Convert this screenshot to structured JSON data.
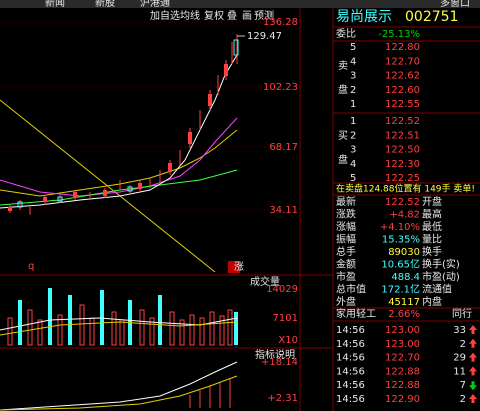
{
  "top_tabs": [
    "新闻",
    "新股",
    "沪港通",
    "多窗口"
  ],
  "toolbar": [
    "加自选",
    "均线",
    "复权",
    "叠",
    "画",
    "预测"
  ],
  "price_axis": [
    "136.28",
    "102.23",
    "68.17",
    "34.11"
  ],
  "high_label": "129.47",
  "chart_markers": {
    "left": "q",
    "right": "涨"
  },
  "volume": {
    "title": "成交量",
    "ticks": [
      "14029",
      "7101",
      "X10"
    ]
  },
  "indicator": {
    "title": "指标说明",
    "ticks": [
      "+18.14",
      "+2.31"
    ]
  },
  "quote": {
    "name": "易尚展示",
    "code": "002751",
    "ratio_label": "委比",
    "ratio": "-25.13%",
    "sell_side": [
      "卖",
      "盘"
    ],
    "sell": [
      {
        "level": "5",
        "price": "122.80"
      },
      {
        "level": "4",
        "price": "122.70"
      },
      {
        "level": "3",
        "price": "122.62"
      },
      {
        "level": "2",
        "price": "122.60"
      },
      {
        "level": "1",
        "price": "122.55"
      }
    ],
    "buy_side": [
      "买",
      "盘"
    ],
    "buy": [
      {
        "level": "1",
        "price": "122.52"
      },
      {
        "level": "2",
        "price": "122.51"
      },
      {
        "level": "3",
        "price": "122.50"
      },
      {
        "level": "4",
        "price": "122.30"
      },
      {
        "level": "5",
        "price": "122.25"
      }
    ],
    "alert": "在卖盘124.88位置有 149手 卖单!",
    "stats": [
      [
        "最新",
        "122.52",
        "开盘"
      ],
      [
        "涨跌",
        "+4.82",
        "最高"
      ],
      [
        "涨幅",
        "+4.10%",
        "最低"
      ],
      [
        "振幅",
        "15.35%",
        "量比"
      ],
      [
        "总手",
        "89030",
        "换手"
      ],
      [
        "金额",
        "10.65亿",
        "换手(实)"
      ],
      [
        "市盈",
        "488.4",
        "市盈(动)"
      ],
      [
        "总市值",
        "172.1亿",
        "流通值"
      ],
      [
        "外盘",
        "45117",
        "内盘"
      ]
    ],
    "sector": {
      "name": "家用轻工",
      "change": "2.66%",
      "more": "同行"
    },
    "ticks": [
      {
        "time": "14:56",
        "price": "123.00",
        "vol": "33",
        "direction": "up"
      },
      {
        "time": "14:56",
        "price": "123.00",
        "vol": "2",
        "direction": "up"
      },
      {
        "time": "14:56",
        "price": "122.70",
        "vol": "29",
        "direction": "up"
      },
      {
        "time": "14:56",
        "price": "122.88",
        "vol": "11",
        "direction": "up"
      },
      {
        "time": "14:56",
        "price": "122.88",
        "vol": "7",
        "direction": "down"
      },
      {
        "time": "14:56",
        "price": "122.90",
        "vol": "2",
        "direction": "up"
      }
    ]
  }
}
